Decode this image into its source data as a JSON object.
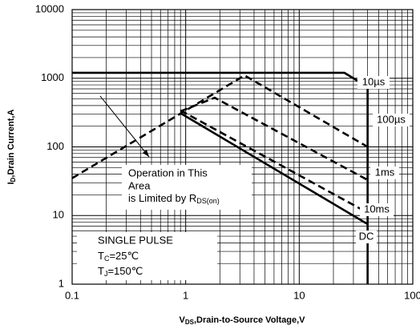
{
  "chart_data": {
    "type": "line",
    "x_label": {
      "parts": [
        "V",
        "DS",
        ",Drain-to-Source Voltage,V"
      ]
    },
    "y_label": {
      "parts": [
        "I",
        "D",
        ",Drain Current,A"
      ]
    },
    "xlog": true,
    "ylog": true,
    "xlim": [
      0.1,
      100
    ],
    "ylim": [
      1,
      10000
    ],
    "xticks": [
      0.1,
      1,
      10,
      100
    ],
    "yticks": [
      1,
      10,
      100,
      1000,
      10000
    ],
    "grid": "major+minor",
    "series": [
      {
        "name": "10µs",
        "color": "#000000",
        "style": "solid",
        "x": [
          0.1,
          25,
          40,
          40
        ],
        "values": [
          1200,
          1200,
          750,
          1
        ]
      },
      {
        "name": "100µs",
        "color": "#000000",
        "style": "dashed",
        "x": [
          0.1,
          3.3,
          40
        ],
        "values": [
          35,
          1100,
          100
        ]
      },
      {
        "name": "1ms",
        "color": "#000000",
        "style": "dashed",
        "x": [
          0.9,
          1.8,
          40
        ],
        "values": [
          330,
          520,
          33
        ]
      },
      {
        "name": "10ms",
        "color": "#000000",
        "style": "dashed",
        "x": [
          0.9,
          40
        ],
        "values": [
          340,
          11
        ]
      },
      {
        "name": "DC",
        "color": "#000000",
        "style": "solid",
        "x": [
          0.9,
          40
        ],
        "values": [
          310,
          7.5
        ]
      }
    ],
    "annotation": {
      "lines": [
        "Operation in This",
        "Area",
        "is Limited by "
      ],
      "r": "R",
      "r_sub": "DS(on)"
    },
    "note": {
      "title": "SINGLE PULSE",
      "tc": [
        "T",
        "C",
        "=25℃"
      ],
      "tj": [
        "T",
        "J",
        "=150℃"
      ]
    }
  }
}
